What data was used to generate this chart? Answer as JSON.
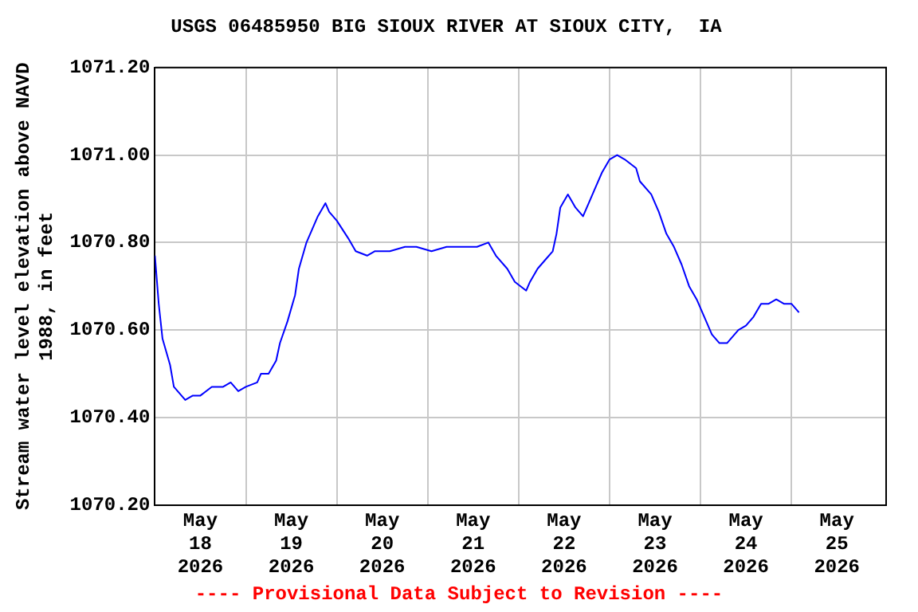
{
  "chart_data": {
    "type": "line",
    "title": "USGS 06485950 BIG SIOUX RIVER AT SIOUX CITY,  IA",
    "ylabel": "Stream water level elevation above NAVD 1988, in feet",
    "annotations": [
      "---- Provisional Data Subject to Revision ----"
    ],
    "x": [
      "2026-05-18T00:00",
      "2026-05-18T01:00",
      "2026-05-18T02:00",
      "2026-05-18T04:00",
      "2026-05-18T05:00",
      "2026-05-18T07:00",
      "2026-05-18T08:00",
      "2026-05-18T10:00",
      "2026-05-18T12:00",
      "2026-05-18T15:00",
      "2026-05-18T18:00",
      "2026-05-18T20:00",
      "2026-05-18T22:00",
      "2026-05-19T00:00",
      "2026-05-19T03:00",
      "2026-05-19T04:00",
      "2026-05-19T06:00",
      "2026-05-19T08:00",
      "2026-05-19T09:00",
      "2026-05-19T11:00",
      "2026-05-19T13:00",
      "2026-05-19T14:00",
      "2026-05-19T16:00",
      "2026-05-19T18:00",
      "2026-05-19T19:00",
      "2026-05-19T21:00",
      "2026-05-19T22:00",
      "2026-05-20T00:00",
      "2026-05-20T03:00",
      "2026-05-20T05:00",
      "2026-05-20T08:00",
      "2026-05-20T10:00",
      "2026-05-20T14:00",
      "2026-05-20T18:00",
      "2026-05-20T21:00",
      "2026-05-21T01:00",
      "2026-05-21T05:00",
      "2026-05-21T09:00",
      "2026-05-21T13:00",
      "2026-05-21T16:00",
      "2026-05-21T18:00",
      "2026-05-21T21:00",
      "2026-05-21T23:00",
      "2026-05-22T02:00",
      "2026-05-22T03:00",
      "2026-05-22T05:00",
      "2026-05-22T07:00",
      "2026-05-22T09:00",
      "2026-05-22T10:00",
      "2026-05-22T11:00",
      "2026-05-22T13:00",
      "2026-05-22T15:00",
      "2026-05-22T17:00",
      "2026-05-22T18:00",
      "2026-05-22T20:00",
      "2026-05-22T22:00",
      "2026-05-23T00:00",
      "2026-05-23T02:00",
      "2026-05-23T04:00",
      "2026-05-23T07:00",
      "2026-05-23T08:00",
      "2026-05-23T11:00",
      "2026-05-23T13:00",
      "2026-05-23T15:00",
      "2026-05-23T17:00",
      "2026-05-23T19:00",
      "2026-05-23T21:00",
      "2026-05-23T23:00",
      "2026-05-24T01:00",
      "2026-05-24T03:00",
      "2026-05-24T05:00",
      "2026-05-24T07:00",
      "2026-05-24T10:00",
      "2026-05-24T12:00",
      "2026-05-24T14:00",
      "2026-05-24T16:00",
      "2026-05-24T18:00",
      "2026-05-24T20:00",
      "2026-05-24T22:00",
      "2026-05-25T00:00",
      "2026-05-25T02:00"
    ],
    "series": [
      {
        "color": "#0000ff",
        "values": [
          1070.77,
          1070.66,
          1070.58,
          1070.52,
          1070.47,
          1070.45,
          1070.44,
          1070.45,
          1070.45,
          1070.47,
          1070.47,
          1070.48,
          1070.46,
          1070.47,
          1070.48,
          1070.5,
          1070.5,
          1070.53,
          1070.57,
          1070.62,
          1070.68,
          1070.74,
          1070.8,
          1070.84,
          1070.86,
          1070.89,
          1070.87,
          1070.85,
          1070.81,
          1070.78,
          1070.77,
          1070.78,
          1070.78,
          1070.79,
          1070.79,
          1070.78,
          1070.79,
          1070.79,
          1070.79,
          1070.8,
          1070.77,
          1070.74,
          1070.71,
          1070.69,
          1070.71,
          1070.74,
          1070.76,
          1070.78,
          1070.82,
          1070.88,
          1070.91,
          1070.88,
          1070.86,
          1070.88,
          1070.92,
          1070.96,
          1070.99,
          1071.0,
          1070.99,
          1070.97,
          1070.94,
          1070.91,
          1070.87,
          1070.82,
          1070.79,
          1070.75,
          1070.7,
          1070.67,
          1070.63,
          1070.59,
          1070.57,
          1070.57,
          1070.6,
          1070.61,
          1070.63,
          1070.66,
          1070.66,
          1070.67,
          1070.66,
          1070.66,
          1070.64
        ]
      }
    ],
    "xlim": [
      "2026-05-18T00:00",
      "2026-05-26T01:00"
    ],
    "xticks": [
      {
        "value": "2026-05-18T12:00",
        "label": "May\n18\n2026"
      },
      {
        "value": "2026-05-19T00:00",
        "label": null
      },
      {
        "value": "2026-05-19T12:00",
        "label": "May\n19\n2026"
      },
      {
        "value": "2026-05-20T00:00",
        "label": null
      },
      {
        "value": "2026-05-20T12:00",
        "label": "May\n20\n2026"
      },
      {
        "value": "2026-05-21T00:00",
        "label": null
      },
      {
        "value": "2026-05-21T12:00",
        "label": "May\n21\n2026"
      },
      {
        "value": "2026-05-22T00:00",
        "label": null
      },
      {
        "value": "2026-05-22T12:00",
        "label": "May\n22\n2026"
      },
      {
        "value": "2026-05-23T00:00",
        "label": null
      },
      {
        "value": "2026-05-23T12:00",
        "label": "May\n23\n2026"
      },
      {
        "value": "2026-05-24T00:00",
        "label": null
      },
      {
        "value": "2026-05-24T12:00",
        "label": "May\n24\n2026"
      },
      {
        "value": "2026-05-25T00:00",
        "label": null
      },
      {
        "value": "2026-05-25T12:00",
        "label": "May\n25\n2026"
      }
    ],
    "ylim": [
      1070.2,
      1071.2
    ],
    "yticks": [
      {
        "value": 1070.2,
        "label": "1070.20"
      },
      {
        "value": 1070.4,
        "label": "1070.40"
      },
      {
        "value": 1070.6,
        "label": "1070.60"
      },
      {
        "value": 1070.8,
        "label": "1070.80"
      },
      {
        "value": 1071.0,
        "label": "1071.00"
      },
      {
        "value": 1071.2,
        "label": "1071.20"
      }
    ],
    "grid": true,
    "legend": false,
    "marker": "none",
    "line_style": "solid"
  }
}
